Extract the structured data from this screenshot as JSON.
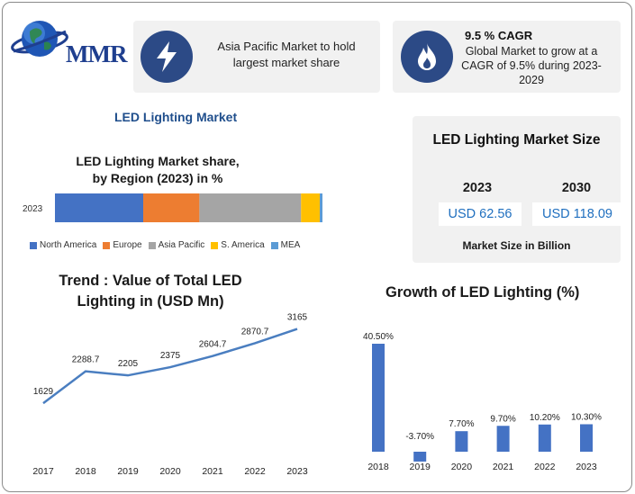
{
  "brand": {
    "logo_text": "MMR"
  },
  "highlights": {
    "asia": {
      "text": "Asia Pacific Market to hold largest market share",
      "icon": "lightning-icon"
    },
    "cagr": {
      "title": "9.5 % CAGR",
      "text": "Global Market to grow at a CAGR of 9.5% during 2023-2029",
      "icon": "flame-icon"
    }
  },
  "report_title": "LED Lighting Market",
  "market_size": {
    "title": "LED Lighting Market Size",
    "years": [
      "2023",
      "2030"
    ],
    "values": [
      "USD 62.56",
      "USD 118.09"
    ],
    "footer": "Market Size in Billion"
  },
  "colors": {
    "accent": "#2c4a86",
    "bar_blue": "#4472c4",
    "orange": "#ed7d31",
    "grey": "#a5a5a5",
    "yellow": "#ffc000",
    "mea": "#5b9bd5"
  },
  "chart_data": [
    {
      "type": "bar",
      "orientation": "horizontal-stacked",
      "title": "LED Lighting Market share, by Region (2023) in %",
      "categories": [
        "2023"
      ],
      "series": [
        {
          "name": "North America",
          "values": [
            33
          ],
          "color": "#4472c4"
        },
        {
          "name": "Europe",
          "values": [
            21
          ],
          "color": "#ed7d31"
        },
        {
          "name": "Asia Pacific",
          "values": [
            38
          ],
          "color": "#a5a5a5"
        },
        {
          "name": "S. America",
          "values": [
            7
          ],
          "color": "#ffc000"
        },
        {
          "name": "MEA",
          "values": [
            1
          ],
          "color": "#5b9bd5"
        }
      ],
      "legend": "bottom"
    },
    {
      "type": "line",
      "title": "Trend : Value of Total LED Lighting in (USD Mn)",
      "x": [
        "2017",
        "2018",
        "2019",
        "2020",
        "2021",
        "2022",
        "2023"
      ],
      "values": [
        1629,
        2288.7,
        2205,
        2375,
        2604.7,
        2870.7,
        3165
      ],
      "labels": [
        "1629",
        "2288.7",
        "2205",
        "2375",
        "2604.7",
        "2870.7",
        "3165"
      ],
      "ylim": [
        700,
        3400
      ]
    },
    {
      "type": "bar",
      "title": "Growth of LED Lighting (%)",
      "categories": [
        "2018",
        "2019",
        "2020",
        "2021",
        "2022",
        "2023"
      ],
      "values": [
        40.5,
        -3.7,
        7.7,
        9.7,
        10.2,
        10.3
      ],
      "labels": [
        "40.50%",
        "-3.70%",
        "7.70%",
        "9.70%",
        "10.20%",
        "10.30%"
      ],
      "ylim": [
        -5,
        45
      ]
    }
  ]
}
